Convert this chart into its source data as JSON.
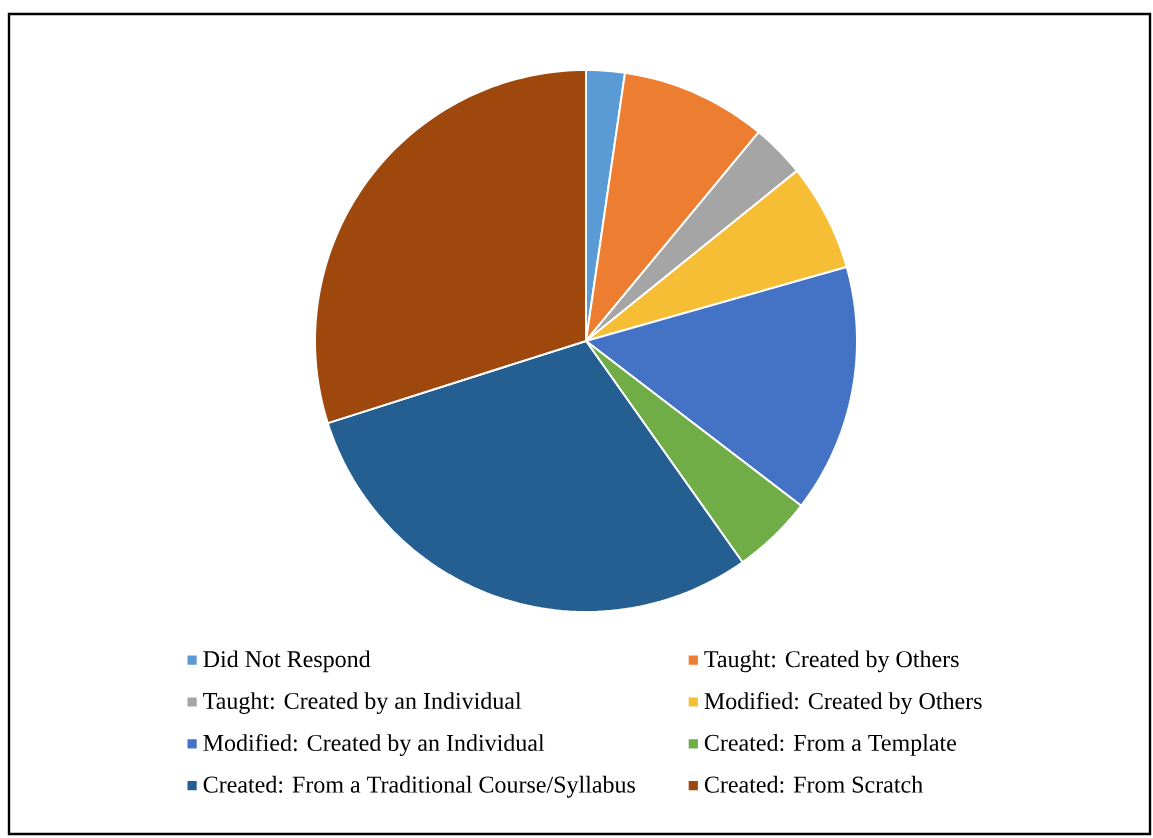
{
  "chart_data": {
    "type": "pie",
    "categories": [
      "Did Not Respond",
      "Taught: Created by Others",
      "Taught: Created by an Individual",
      "Modified: Created by Others",
      "Modified: Created by an Individual",
      "Created: From a Template",
      "Created: From a Traditional Course/Syllabus",
      "Created: From Scratch"
    ],
    "values": [
      2.3,
      8.7,
      3.2,
      6.4,
      14.8,
      4.8,
      29.9,
      29.9
    ],
    "colors": [
      "#5b9bd5",
      "#ed7d31",
      "#a5a5a5",
      "#f5be35",
      "#4472c4",
      "#70ad47",
      "#255e91",
      "#9e480e"
    ],
    "legend": "bottom"
  }
}
